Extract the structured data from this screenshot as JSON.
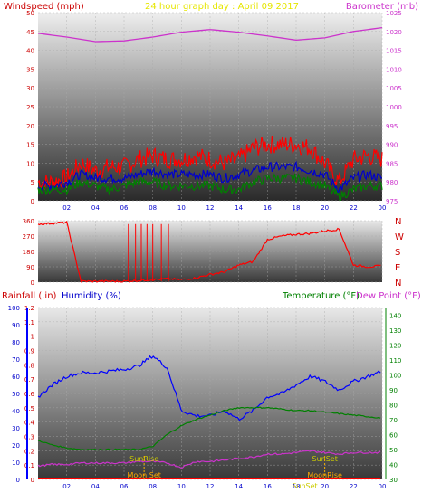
{
  "header": {
    "left_label": "Windspeed (mph)",
    "title": "24 hour graph day : April 09 2017",
    "right_label": "Barometer (mb)"
  },
  "colors": {
    "wind_gust": "#ff0000",
    "wind_avg": "#0000cc",
    "wind_min": "#008000",
    "barometer": "#cc33cc",
    "direction": "#ff0000",
    "rain": "#ff0000",
    "humidity": "#0000ff",
    "temperature": "#008000",
    "dewpoint": "#cc33cc",
    "sun": "#cccc00",
    "moon": "#ffaa00"
  },
  "chart_data": [
    {
      "type": "line",
      "x_ticks": [
        "02",
        "04",
        "06",
        "08",
        "10",
        "12",
        "14",
        "16",
        "18",
        "20",
        "22",
        "00"
      ],
      "yleft": {
        "label": "Windspeed (mph)",
        "ticks": [
          "0",
          "5",
          "10",
          "15",
          "20",
          "25",
          "30",
          "35",
          "40",
          "45",
          "50"
        ],
        "range": [
          0,
          50
        ]
      },
      "yright": {
        "label": "Barometer (mb)",
        "ticks": [
          "975",
          "980",
          "985",
          "990",
          "995",
          "1000",
          "1005",
          "1010",
          "1015",
          "1020",
          "1025"
        ],
        "range": [
          975,
          1025
        ]
      },
      "series": [
        {
          "name": "Barometer",
          "axis": "right",
          "x": [
            0,
            2,
            4,
            6,
            8,
            10,
            12,
            14,
            16,
            18,
            20,
            22,
            24
          ],
          "values": [
            1019.5,
            1018.5,
            1017.3,
            1017.5,
            1018.5,
            1019.8,
            1020.5,
            1019.8,
            1018.8,
            1017.7,
            1018.3,
            1020.0,
            1021.0
          ]
        },
        {
          "name": "Gust",
          "axis": "left",
          "x": [
            0,
            1,
            2,
            3,
            4,
            5,
            6,
            7,
            8,
            9,
            10,
            11,
            12,
            13,
            14,
            15,
            16,
            17,
            18,
            19,
            20,
            21,
            22,
            23,
            24
          ],
          "values": [
            5,
            5,
            6,
            10,
            8,
            9,
            9,
            11,
            12,
            11,
            11,
            12,
            11,
            10,
            11,
            14,
            15,
            15,
            15,
            14,
            10,
            5,
            11,
            12,
            11
          ]
        },
        {
          "name": "Average",
          "axis": "left",
          "x": [
            0,
            1,
            2,
            3,
            4,
            5,
            6,
            7,
            8,
            9,
            10,
            11,
            12,
            13,
            14,
            15,
            16,
            17,
            18,
            19,
            20,
            21,
            22,
            23,
            24
          ],
          "values": [
            4,
            4,
            5,
            7,
            6,
            6,
            6,
            7,
            8,
            7,
            7,
            7,
            7,
            6,
            7,
            8,
            9,
            9,
            9,
            8,
            7,
            3,
            6,
            7,
            6
          ]
        },
        {
          "name": "Minimum",
          "axis": "left",
          "x": [
            0,
            1,
            2,
            3,
            4,
            5,
            6,
            7,
            8,
            9,
            10,
            11,
            12,
            13,
            14,
            15,
            16,
            17,
            18,
            19,
            20,
            21,
            22,
            23,
            24
          ],
          "values": [
            3,
            3,
            3,
            5,
            4,
            3,
            4,
            5,
            5,
            4,
            4,
            4,
            4,
            3,
            3,
            5,
            6,
            6,
            6,
            5,
            4,
            1,
            3,
            4,
            4
          ]
        }
      ]
    },
    {
      "type": "scatter",
      "ylabels_left": [
        "360",
        "270",
        "180",
        "90",
        "0"
      ],
      "ylabels_right": [
        "N",
        "W",
        "S",
        "E",
        "N"
      ],
      "range": [
        0,
        360
      ],
      "series": [
        {
          "name": "Direction",
          "x": [
            0,
            1,
            2,
            3,
            4,
            5,
            6,
            7,
            8,
            9,
            10,
            11,
            12,
            13,
            14,
            15,
            16,
            17,
            18,
            19,
            20,
            21,
            22,
            23,
            24
          ],
          "values": [
            340,
            345,
            350,
            5,
            5,
            5,
            5,
            10,
            15,
            20,
            15,
            25,
            45,
            60,
            100,
            120,
            250,
            270,
            280,
            285,
            300,
            310,
            100,
            90,
            95
          ]
        }
      ]
    },
    {
      "type": "line",
      "rain_axis": {
        "label": "Rainfall (.in)",
        "ticks": [
          "0",
          "0.1",
          "0.2",
          "0.3",
          "0.4",
          "0.5",
          "0.6",
          "0.7",
          "0.8",
          "0.9",
          "1",
          "1.1",
          "1.2"
        ],
        "range": [
          0,
          1.2
        ]
      },
      "humidity_axis": {
        "label": "Humidity (%)",
        "ticks": [
          "0",
          "10",
          "20",
          "30",
          "40",
          "50",
          "60",
          "70",
          "80",
          "90",
          "100"
        ],
        "range": [
          0,
          100
        ]
      },
      "temp_axis": {
        "label": "Temperature (°F)",
        "label2": "Dew Point (°F)",
        "ticks": [
          "30",
          "40",
          "50",
          "60",
          "70",
          "80",
          "90",
          "100",
          "110",
          "120",
          "130",
          "140"
        ],
        "range": [
          30,
          145
        ]
      },
      "series": [
        {
          "name": "Humidity",
          "x": [
            0,
            1,
            2,
            3,
            4,
            5,
            6,
            7,
            8,
            9,
            10,
            11,
            12,
            13,
            14,
            15,
            16,
            17,
            18,
            19,
            20,
            21,
            22,
            23,
            24
          ],
          "values": [
            48,
            55,
            60,
            62,
            62,
            63,
            64,
            66,
            72,
            65,
            40,
            37,
            37,
            40,
            35,
            40,
            48,
            50,
            55,
            60,
            57,
            52,
            57,
            60,
            63
          ]
        },
        {
          "name": "Temperature",
          "x": [
            0,
            1,
            2,
            3,
            4,
            5,
            6,
            7,
            8,
            9,
            10,
            11,
            12,
            13,
            14,
            15,
            16,
            17,
            18,
            19,
            20,
            21,
            22,
            23,
            24
          ],
          "values": [
            56,
            53,
            51,
            50,
            50,
            50,
            50,
            50,
            52,
            60,
            66,
            70,
            73,
            76,
            78,
            78,
            78,
            77,
            76,
            76,
            75,
            74,
            73,
            72,
            71
          ]
        },
        {
          "name": "Dew Point",
          "x": [
            0,
            1,
            2,
            3,
            4,
            5,
            6,
            7,
            8,
            9,
            10,
            11,
            12,
            13,
            14,
            15,
            16,
            17,
            18,
            19,
            20,
            21,
            22,
            23,
            24
          ],
          "values": [
            39,
            40,
            40,
            41,
            41,
            41,
            41,
            42,
            42,
            41,
            38,
            42,
            42,
            43,
            44,
            45,
            47,
            47,
            48,
            49,
            48,
            47,
            48,
            48,
            48
          ]
        },
        {
          "name": "Rain",
          "x": [
            0,
            24
          ],
          "values": [
            0.005,
            0.005
          ]
        }
      ],
      "x_ticks": [
        "02",
        "04",
        "06",
        "08",
        "10",
        "12",
        "14",
        "16",
        "18",
        "20",
        "22",
        "00"
      ],
      "annotations": [
        {
          "text": "SunRise",
          "x": 7.4,
          "pos": "upper"
        },
        {
          "text": "SunSet",
          "x": 20.0,
          "pos": "upper"
        },
        {
          "text": "Moon Set",
          "x": 7.4,
          "pos": "lower"
        },
        {
          "text": "MoonRise",
          "x": 20.0,
          "pos": "lower"
        },
        {
          "text": "SunSet",
          "x": 18.6,
          "pos": "bottom"
        }
      ]
    }
  ]
}
